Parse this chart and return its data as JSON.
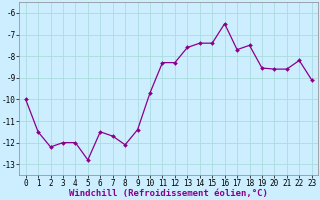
{
  "x": [
    0,
    1,
    2,
    3,
    4,
    5,
    6,
    7,
    8,
    9,
    10,
    11,
    12,
    13,
    14,
    15,
    16,
    17,
    18,
    19,
    20,
    21,
    22,
    23
  ],
  "y": [
    -10,
    -11.5,
    -12.2,
    -12.0,
    -12.0,
    -12.8,
    -11.5,
    -11.7,
    -12.1,
    -11.4,
    -9.7,
    -8.3,
    -8.3,
    -7.6,
    -7.4,
    -7.4,
    -6.5,
    -7.7,
    -7.5,
    -8.55,
    -8.6,
    -8.6,
    -8.2,
    -9.1
  ],
  "line_color": "#8b008b",
  "marker": "D",
  "marker_size": 2.0,
  "bg_color": "#cceeff",
  "grid_color": "#aadddd",
  "xlabel": "Windchill (Refroidissement éolien,°C)",
  "ylabel": "",
  "xlim": [
    -0.5,
    23.5
  ],
  "ylim": [
    -13.5,
    -5.5
  ],
  "yticks": [
    -13,
    -12,
    -11,
    -10,
    -9,
    -8,
    -7,
    -6
  ],
  "xticks": [
    0,
    1,
    2,
    3,
    4,
    5,
    6,
    7,
    8,
    9,
    10,
    11,
    12,
    13,
    14,
    15,
    16,
    17,
    18,
    19,
    20,
    21,
    22,
    23
  ],
  "tick_fontsize": 5.5,
  "label_fontsize": 6.5,
  "linewidth": 0.9
}
